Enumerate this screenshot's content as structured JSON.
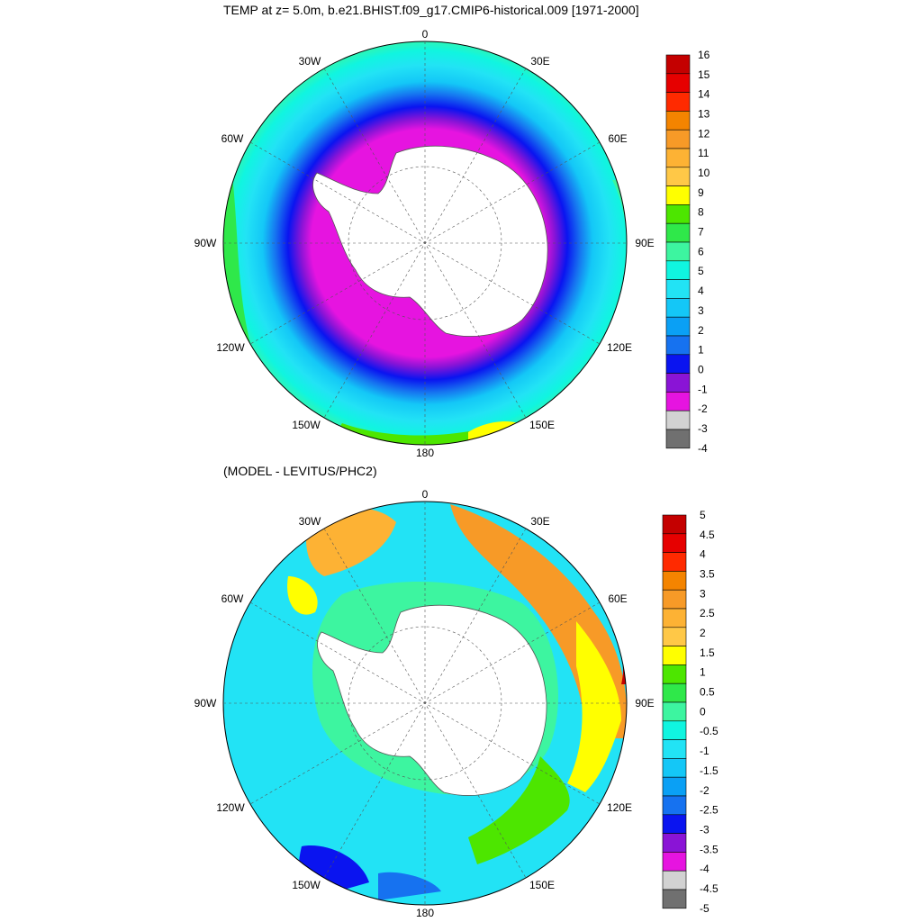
{
  "panels": [
    {
      "title": "TEMP at z=   5.0m, b.e21.BHIST.f09_g17.CMIP6-historical.009 [1971-2000]",
      "colorbar": {
        "labels": [
          "16",
          "15",
          "14",
          "13",
          "12",
          "11",
          "10",
          "9",
          "8",
          "7",
          "6",
          "5",
          "4",
          "3",
          "2",
          "1",
          "0",
          "-1",
          "-2",
          "-3",
          "-4"
        ],
        "colors": [
          "#c40000",
          "#e60000",
          "#ff2a00",
          "#f48400",
          "#f79a27",
          "#fdb234",
          "#ffc847",
          "#ffff00",
          "#4de600",
          "#2fe84a",
          "#3df5a0",
          "#10f5e0",
          "#22e3f5",
          "#14c7f7",
          "#0aa0f5",
          "#1672f0",
          "#0a14f0",
          "#8a14d6",
          "#e614e0",
          "#d2d2d2",
          "#707070"
        ]
      },
      "labels": {
        "top": "0",
        "top_left": "30W",
        "top_right": "30E",
        "upper_left": "60W",
        "upper_right": "60E",
        "left": "90W",
        "right": "90E",
        "lower_left": "120W",
        "lower_right": "120E",
        "bottom_left": "150W",
        "bottom_right": "150E",
        "bottom": "180"
      }
    },
    {
      "title": "(MODEL - LEVITUS/PHC2)",
      "colorbar": {
        "labels": [
          "5",
          "4.5",
          "4",
          "3.5",
          "3",
          "2.5",
          "2",
          "1.5",
          "1",
          "0.5",
          "0",
          "-0.5",
          "-1",
          "-1.5",
          "-2",
          "-2.5",
          "-3",
          "-3.5",
          "-4",
          "-4.5",
          "-5"
        ],
        "colors": [
          "#c40000",
          "#e60000",
          "#ff2a00",
          "#f48400",
          "#f79a27",
          "#fdb234",
          "#ffc847",
          "#ffff00",
          "#4de600",
          "#2fe84a",
          "#3df5a0",
          "#10f5e0",
          "#22e3f5",
          "#14c7f7",
          "#0aa0f5",
          "#1672f0",
          "#0a14f0",
          "#8a14d6",
          "#e614e0",
          "#d2d2d2",
          "#707070"
        ]
      },
      "labels": {
        "top": "0",
        "top_left": "30W",
        "top_right": "30E",
        "upper_left": "60W",
        "upper_right": "60E",
        "left": "90W",
        "right": "90E",
        "lower_left": "120W",
        "lower_right": "120E",
        "bottom_left": "150W",
        "bottom_right": "150E",
        "bottom": "180"
      }
    }
  ]
}
